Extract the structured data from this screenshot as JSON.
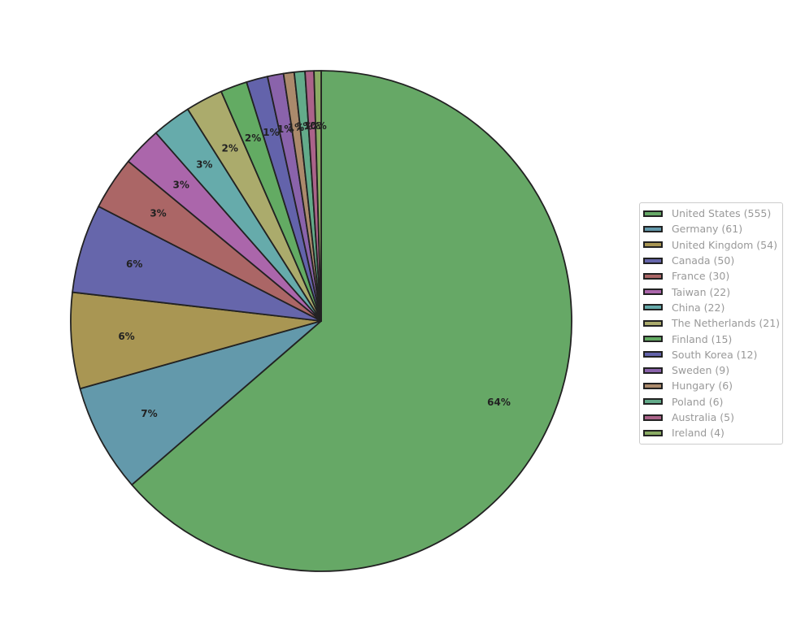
{
  "chart_data": {
    "type": "pie",
    "title": "",
    "slices": [
      {
        "label": "United States (555)",
        "value": 555,
        "pct_label": "64%",
        "color": "#66a866"
      },
      {
        "label": "Germany (61)",
        "value": 61,
        "pct_label": "7%",
        "color": "#6399ab"
      },
      {
        "label": "United Kingdom (54)",
        "value": 54,
        "pct_label": "6%",
        "color": "#a99653"
      },
      {
        "label": "Canada (50)",
        "value": 50,
        "pct_label": "6%",
        "color": "#6666ab"
      },
      {
        "label": "France (30)",
        "value": 30,
        "pct_label": "3%",
        "color": "#ab6666"
      },
      {
        "label": "Taiwan (22)",
        "value": 22,
        "pct_label": "3%",
        "color": "#ab66ab"
      },
      {
        "label": "China (22)",
        "value": 22,
        "pct_label": "3%",
        "color": "#66abab"
      },
      {
        "label": "The Netherlands (21)",
        "value": 21,
        "pct_label": "2%",
        "color": "#abab6c"
      },
      {
        "label": "Finland (15)",
        "value": 15,
        "pct_label": "2%",
        "color": "#63ab63"
      },
      {
        "label": "South Korea (12)",
        "value": 12,
        "pct_label": "1%",
        "color": "#6363ab"
      },
      {
        "label": "Sweden (9)",
        "value": 9,
        "pct_label": "1%",
        "color": "#8a63ab"
      },
      {
        "label": "Hungary (6)",
        "value": 6,
        "pct_label": "1%",
        "color": "#ab8a6c"
      },
      {
        "label": "Poland (6)",
        "value": 6,
        "pct_label": "1%",
        "color": "#63ab8a"
      },
      {
        "label": "Australia (5)",
        "value": 5,
        "pct_label": "1%",
        "color": "#ab638a"
      },
      {
        "label": "Ireland (4)",
        "value": 4,
        "pct_label": "0%",
        "color": "#8aab63"
      }
    ],
    "start_angle_deg": 90,
    "direction": "clockwise",
    "edge_color": "#222222",
    "legend_position": "right"
  }
}
